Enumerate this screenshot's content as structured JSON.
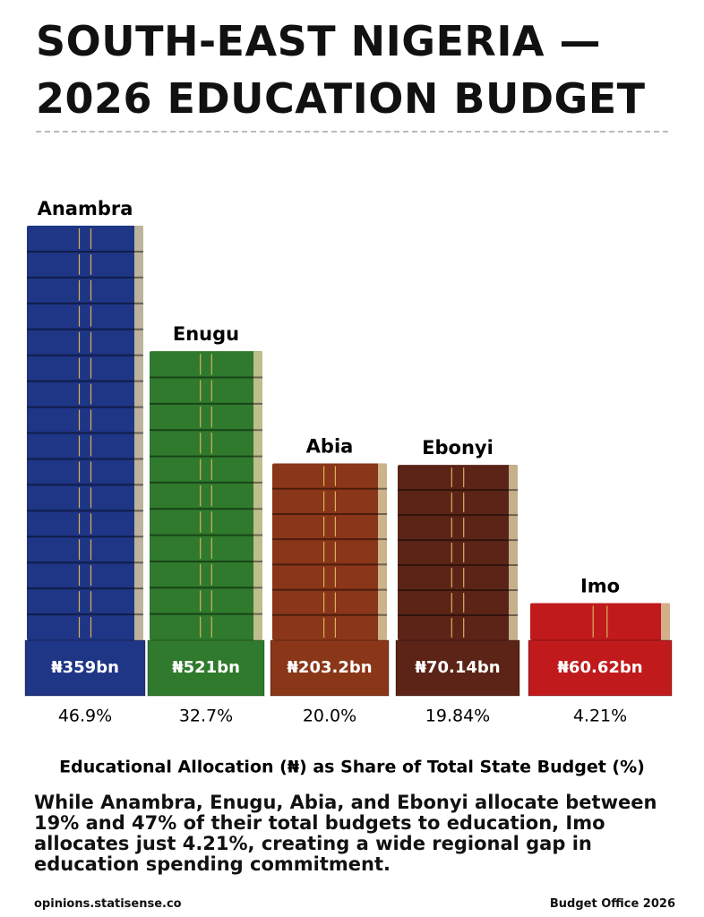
{
  "chart_data": {
    "type": "bar",
    "title": "SOUTH-EAST NIGERIA — 2026 EDUCATION BUDGET",
    "categories": [
      "Anambra",
      "Enugu",
      "Abia",
      "Ebonyi",
      "Imo"
    ],
    "values": [
      46.9,
      32.7,
      20.0,
      19.84,
      4.21
    ],
    "value_labels": [
      "46.9%",
      "32.7%",
      "20.0%",
      "19.84%",
      "4.21%"
    ],
    "allocation_labels": [
      "₦359bn",
      "₦521bn",
      "₦203.2bn",
      "₦70.14bn",
      "₦60.62bn"
    ],
    "colors": [
      "#1f3585",
      "#2f7a2c",
      "#8a3618",
      "#5b2417",
      "#c01a1c"
    ],
    "x_label": "Educational Allocation (₦) as Share of Total State Budget (%)",
    "description": "While Anambra, Enugu, Abia, and Ebonyi allocate between 19% and 47% of their total budgets to education, Imo allocates just 4.21%, creating a wide regional gap in education spending commitment.",
    "footer_left": "opinions.statisense.co",
    "footer_right": "Budget Office 2026"
  }
}
